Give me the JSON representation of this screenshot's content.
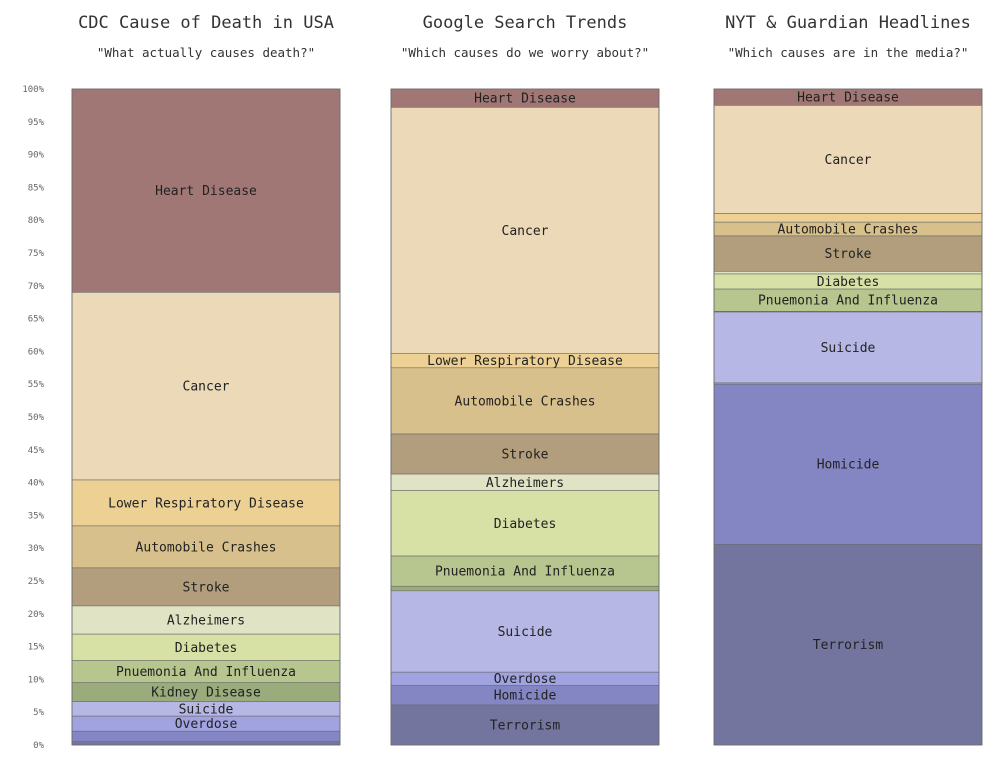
{
  "chart_data": {
    "type": "bar",
    "stacked": true,
    "ylim": [
      0,
      100
    ],
    "yticks": [
      "0%",
      "5%",
      "10%",
      "15%",
      "20%",
      "25%",
      "30%",
      "35%",
      "40%",
      "45%",
      "50%",
      "55%",
      "60%",
      "65%",
      "70%",
      "75%",
      "80%",
      "85%",
      "90%",
      "95%",
      "100%"
    ],
    "colors": {
      "Heart Disease": "#a07774",
      "Cancer": "#ecd9b8",
      "Lower Respiratory Disease": "#ecd094",
      "Automobile Crashes": "#d7c08b",
      "Stroke": "#b29e7d",
      "Alzheimers": "#e1e4c4",
      "Diabetes": "#d7e1a6",
      "Pnuemonia And Influenza": "#b7c58f",
      "Kidney Disease": "#9aab7c",
      "Suicide": "#b7b7e5",
      "Overdose": "#a1a2e0",
      "Homicide": "#8486c4",
      "Terrorism": "#74759f"
    },
    "panels": [
      {
        "title": "CDC Cause of Death in USA",
        "subtitle": "\"What actually causes death?\"",
        "segments": [
          {
            "name": "Heart Disease",
            "value": 31.0,
            "label": "Heart Disease"
          },
          {
            "name": "Cancer",
            "value": 28.6,
            "label": "Cancer"
          },
          {
            "name": "Lower Respiratory Disease",
            "value": 7.0,
            "label": "Lower Respiratory Disease"
          },
          {
            "name": "Automobile Crashes",
            "value": 6.4,
            "label": "Automobile Crashes"
          },
          {
            "name": "Stroke",
            "value": 5.8,
            "label": "Stroke"
          },
          {
            "name": "Alzheimers",
            "value": 4.3,
            "label": "Alzheimers"
          },
          {
            "name": "Diabetes",
            "value": 4.0,
            "label": "Diabetes"
          },
          {
            "name": "Pnuemonia And Influenza",
            "value": 3.4,
            "label": "Pnuemonia And Influenza"
          },
          {
            "name": "Kidney Disease",
            "value": 2.9,
            "label": "Kidney Disease"
          },
          {
            "name": "Suicide",
            "value": 2.2,
            "label": "Suicide"
          },
          {
            "name": "Overdose",
            "value": 2.3,
            "label": "Overdose"
          },
          {
            "name": "Homicide",
            "value": 1.6,
            "label": ""
          },
          {
            "name": "Terrorism",
            "value": 0.5,
            "label": ""
          }
        ]
      },
      {
        "title": "Google Search Trends",
        "subtitle": "\"Which causes do we worry about?\"",
        "segments": [
          {
            "name": "Heart Disease",
            "value": 2.8,
            "label": "Heart Disease"
          },
          {
            "name": "Cancer",
            "value": 37.5,
            "label": "Cancer"
          },
          {
            "name": "Lower Respiratory Disease",
            "value": 2.2,
            "label": "Lower Respiratory Disease"
          },
          {
            "name": "Automobile Crashes",
            "value": 10.1,
            "label": "Automobile Crashes"
          },
          {
            "name": "Stroke",
            "value": 6.1,
            "label": "Stroke"
          },
          {
            "name": "Alzheimers",
            "value": 2.5,
            "label": "Alzheimers"
          },
          {
            "name": "Diabetes",
            "value": 10.0,
            "label": "Diabetes"
          },
          {
            "name": "Pnuemonia And Influenza",
            "value": 4.6,
            "label": "Pnuemonia And Influenza"
          },
          {
            "name": "Kidney Disease",
            "value": 0.7,
            "label": ""
          },
          {
            "name": "Suicide",
            "value": 12.4,
            "label": "Suicide"
          },
          {
            "name": "Overdose",
            "value": 2.0,
            "label": "Overdose"
          },
          {
            "name": "Homicide",
            "value": 3.0,
            "label": "Homicide"
          },
          {
            "name": "Terrorism",
            "value": 6.1,
            "label": "Terrorism"
          }
        ]
      },
      {
        "title": "NYT & Guardian Headlines",
        "subtitle": "\"Which causes are in the media?\"",
        "segments": [
          {
            "name": "Heart Disease",
            "value": 2.5,
            "label": "Heart Disease"
          },
          {
            "name": "Cancer",
            "value": 16.5,
            "label": "Cancer"
          },
          {
            "name": "Lower Respiratory Disease",
            "value": 1.3,
            "label": ""
          },
          {
            "name": "Automobile Crashes",
            "value": 2.1,
            "label": "Automobile Crashes"
          },
          {
            "name": "Stroke",
            "value": 5.4,
            "label": "Stroke"
          },
          {
            "name": "Alzheimers",
            "value": 0.4,
            "label": ""
          },
          {
            "name": "Diabetes",
            "value": 2.3,
            "label": "Diabetes"
          },
          {
            "name": "Pnuemonia And Influenza",
            "value": 3.4,
            "label": "Pnuemonia And Influenza"
          },
          {
            "name": "Kidney Disease",
            "value": 0.1,
            "label": ""
          },
          {
            "name": "Suicide",
            "value": 10.8,
            "label": "Suicide"
          },
          {
            "name": "Overdose",
            "value": 0.2,
            "label": ""
          },
          {
            "name": "Homicide",
            "value": 24.4,
            "label": "Homicide"
          },
          {
            "name": "Terrorism",
            "value": 30.6,
            "label": "Terrorism"
          }
        ]
      }
    ]
  }
}
